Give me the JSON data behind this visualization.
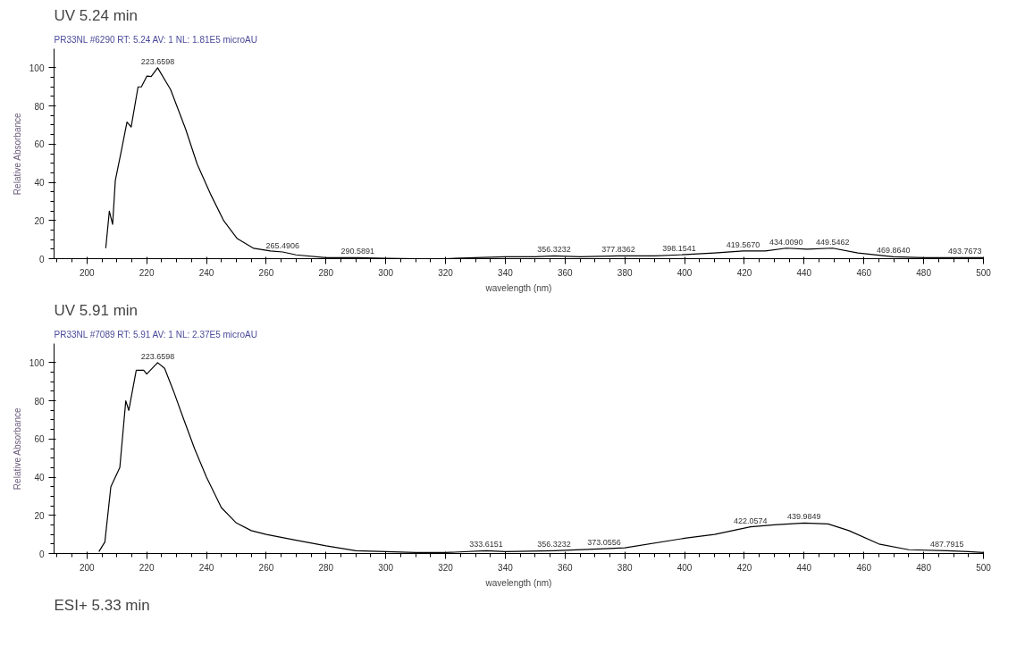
{
  "chart_data": [
    {
      "type": "line",
      "title": "UV 5.24 min",
      "subtitle": "PR33NL #6290  RT: 5.24  AV: 1  NL: 1.81E5  microAU",
      "xlabel": "wavelength (nm)",
      "ylabel": "Relative Absorbance",
      "xlim": [
        189,
        500
      ],
      "ylim": [
        0,
        110
      ],
      "xticks": [
        200,
        220,
        240,
        260,
        280,
        300,
        320,
        340,
        360,
        380,
        400,
        420,
        440,
        460,
        480,
        500
      ],
      "yticks": [
        0,
        20,
        40,
        60,
        80,
        100
      ],
      "grid": false,
      "marker": "none",
      "line_style": "solid",
      "series": [
        {
          "color": "#000000",
          "x": [
            206.3,
            207.5,
            208.6,
            209.5,
            211.7,
            213.4,
            214.8,
            217.1,
            218.2,
            220.1,
            221.5,
            223.6598,
            228,
            233,
            236.9,
            241.3,
            245.8,
            250.3,
            255.8,
            261.4,
            265.4906,
            270,
            280,
            290.5891,
            300,
            310,
            320,
            330,
            340,
            350,
            356.3232,
            365,
            377.8362,
            390,
            398.1541,
            410,
            419.567,
            427,
            434.009,
            441,
            449.5462,
            458,
            469.864,
            480,
            493.7673,
            500
          ],
          "values": [
            5.5,
            24.9,
            18,
            41,
            58,
            71.6,
            69,
            90,
            90,
            95.7,
            95.4,
            100,
            88.6,
            68,
            49.5,
            34,
            19.8,
            10.5,
            5.4,
            4,
            3.5,
            2,
            0.5,
            0.5,
            0.2,
            0,
            0,
            0.5,
            1,
            1,
            1.5,
            1,
            1.5,
            1.5,
            2,
            3,
            4,
            4,
            5.5,
            5,
            5.5,
            3,
            1,
            0.5,
            0.5,
            0.5
          ]
        }
      ],
      "annotations": [
        {
          "text": "223.6598",
          "x": 223.6598,
          "y": 100
        },
        {
          "text": "265.4906",
          "x": 265.4906,
          "y": 3.5
        },
        {
          "text": "290.5891",
          "x": 290.5891,
          "y": 0.5
        },
        {
          "text": "356.3232",
          "x": 356.3232,
          "y": 1.5
        },
        {
          "text": "377.8362",
          "x": 377.8362,
          "y": 1.5
        },
        {
          "text": "398.1541",
          "x": 398.1541,
          "y": 2
        },
        {
          "text": "419.5670",
          "x": 419.567,
          "y": 4
        },
        {
          "text": "434.0090",
          "x": 434.009,
          "y": 5.5
        },
        {
          "text": "449.5462",
          "x": 449.5462,
          "y": 5.5
        },
        {
          "text": "469.8640",
          "x": 469.864,
          "y": 1
        },
        {
          "text": "493.7673",
          "x": 493.7673,
          "y": 0.5
        }
      ]
    },
    {
      "type": "line",
      "title": "UV 5.91 min",
      "subtitle": "PR33NL #7089  RT: 5.91  AV: 1  NL: 2.37E5  microAU",
      "xlabel": "wavelength (nm)",
      "ylabel": "Relative Absorbance",
      "xlim": [
        189,
        500
      ],
      "ylim": [
        0,
        110
      ],
      "xticks": [
        200,
        220,
        240,
        260,
        280,
        300,
        320,
        340,
        360,
        380,
        400,
        420,
        440,
        460,
        480,
        500
      ],
      "yticks": [
        0,
        20,
        40,
        60,
        80,
        100
      ],
      "grid": false,
      "marker": "none",
      "line_style": "solid",
      "series": [
        {
          "color": "#000000",
          "x": [
            204,
            206,
            208,
            211,
            213,
            214,
            216.5,
            219,
            220,
            223.6598,
            226,
            229,
            232,
            236,
            240,
            245,
            250,
            255,
            260,
            270,
            280,
            290,
            300,
            310,
            320,
            333.6151,
            340,
            356.3232,
            373.0556,
            380,
            400,
            410,
            422.0574,
            430,
            439.9849,
            448,
            455,
            465,
            475,
            487.7915,
            495,
            500
          ],
          "values": [
            1,
            6,
            35,
            45,
            80,
            75,
            96,
            96,
            94,
            100,
            97,
            85,
            72,
            55,
            40,
            24,
            16,
            12,
            10,
            7,
            4,
            1.5,
            1,
            0.5,
            0.5,
            1.5,
            1,
            1.5,
            2.5,
            3,
            8,
            10,
            14,
            15,
            16,
            15.5,
            12,
            5,
            2,
            1.5,
            1,
            0.5
          ]
        }
      ],
      "annotations": [
        {
          "text": "223.6598",
          "x": 223.6598,
          "y": 100
        },
        {
          "text": "333.6151",
          "x": 333.6151,
          "y": 1.5
        },
        {
          "text": "356.3232",
          "x": 356.3232,
          "y": 1.5
        },
        {
          "text": "373.0556",
          "x": 373.0556,
          "y": 2.5
        },
        {
          "text": "422.0574",
          "x": 422.0574,
          "y": 14
        },
        {
          "text": "439.9849",
          "x": 439.9849,
          "y": 16
        },
        {
          "text": "487.7915",
          "x": 487.7915,
          "y": 1.5
        }
      ]
    },
    {
      "type": "other",
      "title": "ESI+ 5.33 min"
    }
  ]
}
